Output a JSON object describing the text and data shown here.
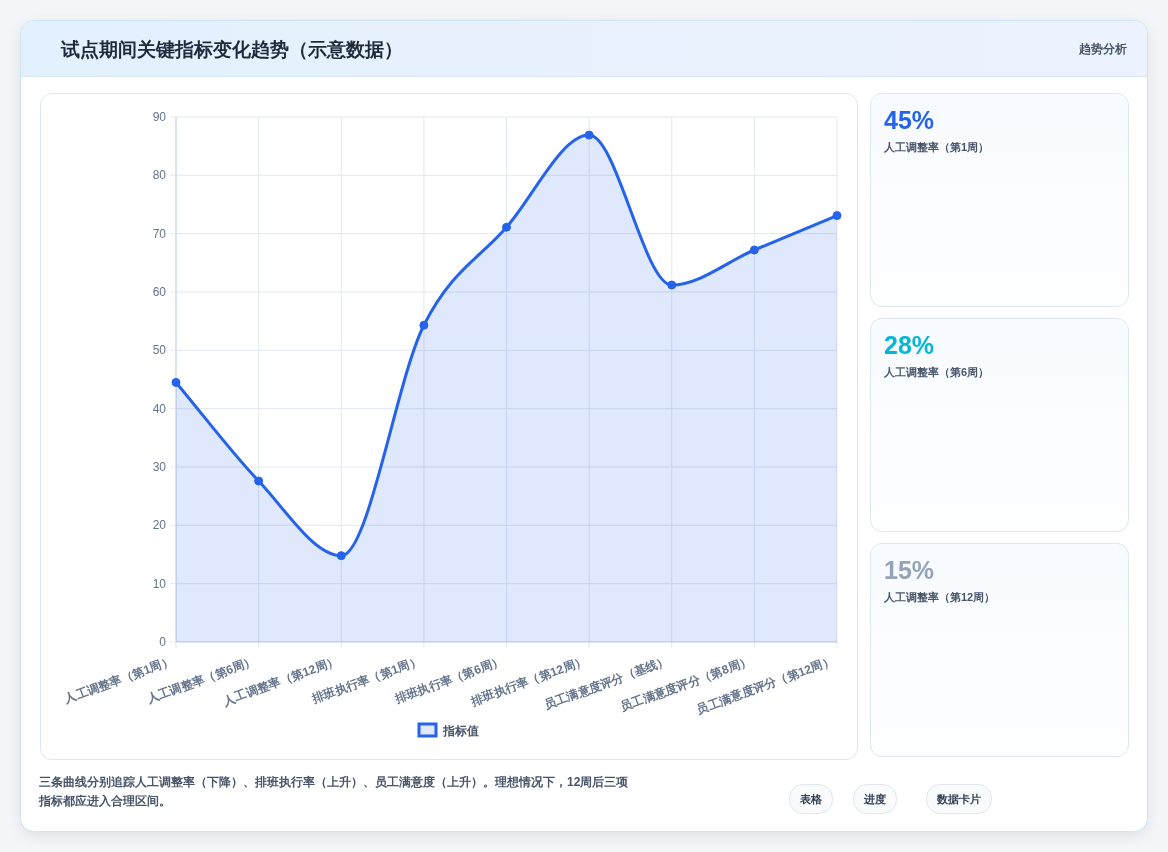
{
  "chart_data": [
    {
      "type": "area",
      "title": "试点期间关键指标变化趋势（示意数据）",
      "categories": [
        "人工调整率（第1周）",
        "人工调整率（第6周）",
        "人工调整率（第12周）",
        "排班执行率（第1周）",
        "排班执行率（第6周）",
        "排班执行率（第12周）",
        "员工满意度评分（基线）",
        "员工满意度评分（第8周）",
        "员工满意度评分（第12周）"
      ],
      "series": [
        {
          "name": "指标值",
          "color": "#2563eb",
          "values": [
            44.5,
            27.6,
            14.8,
            54.3,
            71.1,
            86.9,
            61.2,
            67.2,
            73.1
          ]
        }
      ],
      "ylim": [
        0,
        90
      ],
      "yticks": [
        0,
        10,
        20,
        30,
        40,
        50,
        60,
        70,
        80,
        90
      ],
      "grid": true,
      "legend": "bottom",
      "marker": "circle",
      "line_style": "solid",
      "annotations": [
        "趋势分析",
        "三条曲线分别追踪人工调整率（下降）、排班执行率（上升）、员工满意度（上升）。理想情况下，12周后三项指标都应进入合理区间。",
        "表格",
        "进度",
        "数据卡片"
      ]
    },
    {
      "type": "other",
      "title": "45%",
      "subtitle": "人工调整率（第1周）"
    },
    {
      "type": "other",
      "title": "28%",
      "subtitle": "人工调整率（第6周）"
    },
    {
      "type": "other",
      "title": "15%",
      "subtitle": "人工调整率（第12周）"
    }
  ]
}
